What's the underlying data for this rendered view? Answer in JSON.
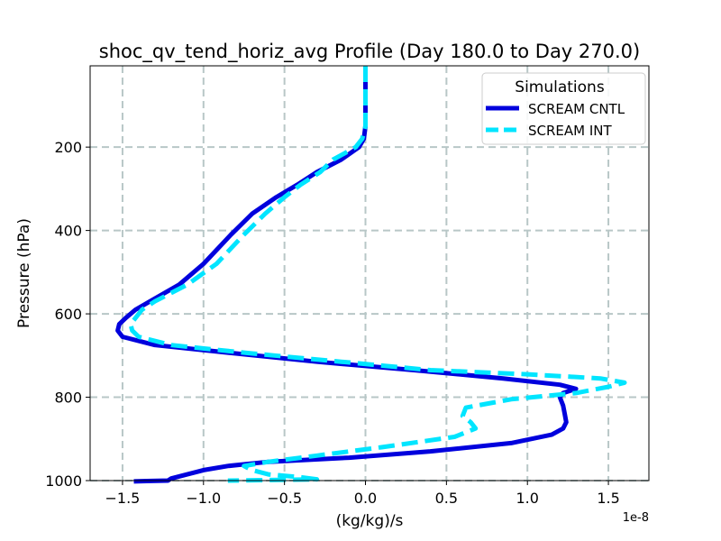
{
  "chart_data": {
    "type": "line",
    "title": "shoc_qv_tend_horiz_avg Profile (Day 180.0 to Day 270.0)",
    "xlabel": "(kg/kg)/s",
    "ylabel": "Pressure (hPa)",
    "x_offset_label": "1e-8",
    "xlim": [
      -1.7,
      1.75
    ],
    "ylim": [
      1000,
      5
    ],
    "y_inverted": true,
    "grid": true,
    "x_ticks": [
      -1.5,
      -1.0,
      -0.5,
      0.0,
      0.5,
      1.0,
      1.5
    ],
    "x_tick_labels": [
      "−1.5",
      "−1.0",
      "−0.5",
      "0.0",
      "0.5",
      "1.0",
      "1.5"
    ],
    "y_ticks": [
      200,
      400,
      600,
      800,
      1000
    ],
    "y_tick_labels": [
      "200",
      "400",
      "600",
      "800",
      "1000"
    ],
    "legend": {
      "title": "Simulations",
      "position": "top-right"
    },
    "series": [
      {
        "name": "SCREAM CNTL",
        "color": "#0000dd",
        "style": "solid",
        "x": [
          0.0,
          0.0,
          0.0,
          0.0,
          -0.01,
          -0.04,
          -0.15,
          -0.3,
          -0.42,
          -0.55,
          -0.7,
          -0.83,
          -1.0,
          -1.15,
          -1.33,
          -1.42,
          -1.48,
          -1.52,
          -1.53,
          -1.5,
          -1.3,
          -0.8,
          -0.3,
          0.3,
          0.85,
          1.2,
          1.3,
          1.22,
          1.2,
          1.22,
          1.23,
          1.24,
          1.22,
          1.15,
          0.9,
          0.4,
          -0.1,
          -0.6,
          -0.85,
          -1.0,
          -1.1,
          -1.2,
          -1.22,
          -1.35,
          -1.43
        ],
        "y": [
          5,
          50,
          100,
          150,
          180,
          200,
          230,
          260,
          290,
          320,
          360,
          410,
          480,
          530,
          570,
          590,
          610,
          625,
          640,
          655,
          675,
          695,
          715,
          735,
          755,
          770,
          780,
          790,
          800,
          820,
          840,
          860,
          875,
          890,
          910,
          930,
          945,
          955,
          965,
          975,
          985,
          995,
          1000,
          1001,
          1002
        ]
      },
      {
        "name": "SCREAM INT",
        "color": "#00e5ff",
        "style": "dashed",
        "x": [
          0.0,
          0.0,
          0.0,
          0.0,
          -0.02,
          -0.06,
          -0.2,
          -0.28,
          -0.4,
          -0.5,
          -0.62,
          -0.75,
          -0.92,
          -1.1,
          -1.3,
          -1.38,
          -1.42,
          -1.45,
          -1.44,
          -1.4,
          -1.2,
          -0.7,
          -0.15,
          0.4,
          1.0,
          1.45,
          1.6,
          1.5,
          1.3,
          0.9,
          0.62,
          0.6,
          0.65,
          0.68,
          0.55,
          0.1,
          -0.3,
          -0.6,
          -0.75,
          -0.7,
          -0.6,
          -0.4,
          -0.3,
          -0.65,
          -0.85
        ],
        "y": [
          5,
          50,
          100,
          150,
          180,
          200,
          230,
          260,
          290,
          320,
          360,
          410,
          480,
          530,
          570,
          590,
          610,
          625,
          640,
          655,
          675,
          695,
          715,
          735,
          745,
          755,
          765,
          775,
          790,
          805,
          825,
          845,
          860,
          875,
          895,
          920,
          940,
          955,
          965,
          975,
          985,
          992,
          997,
          999,
          1000
        ]
      }
    ]
  }
}
